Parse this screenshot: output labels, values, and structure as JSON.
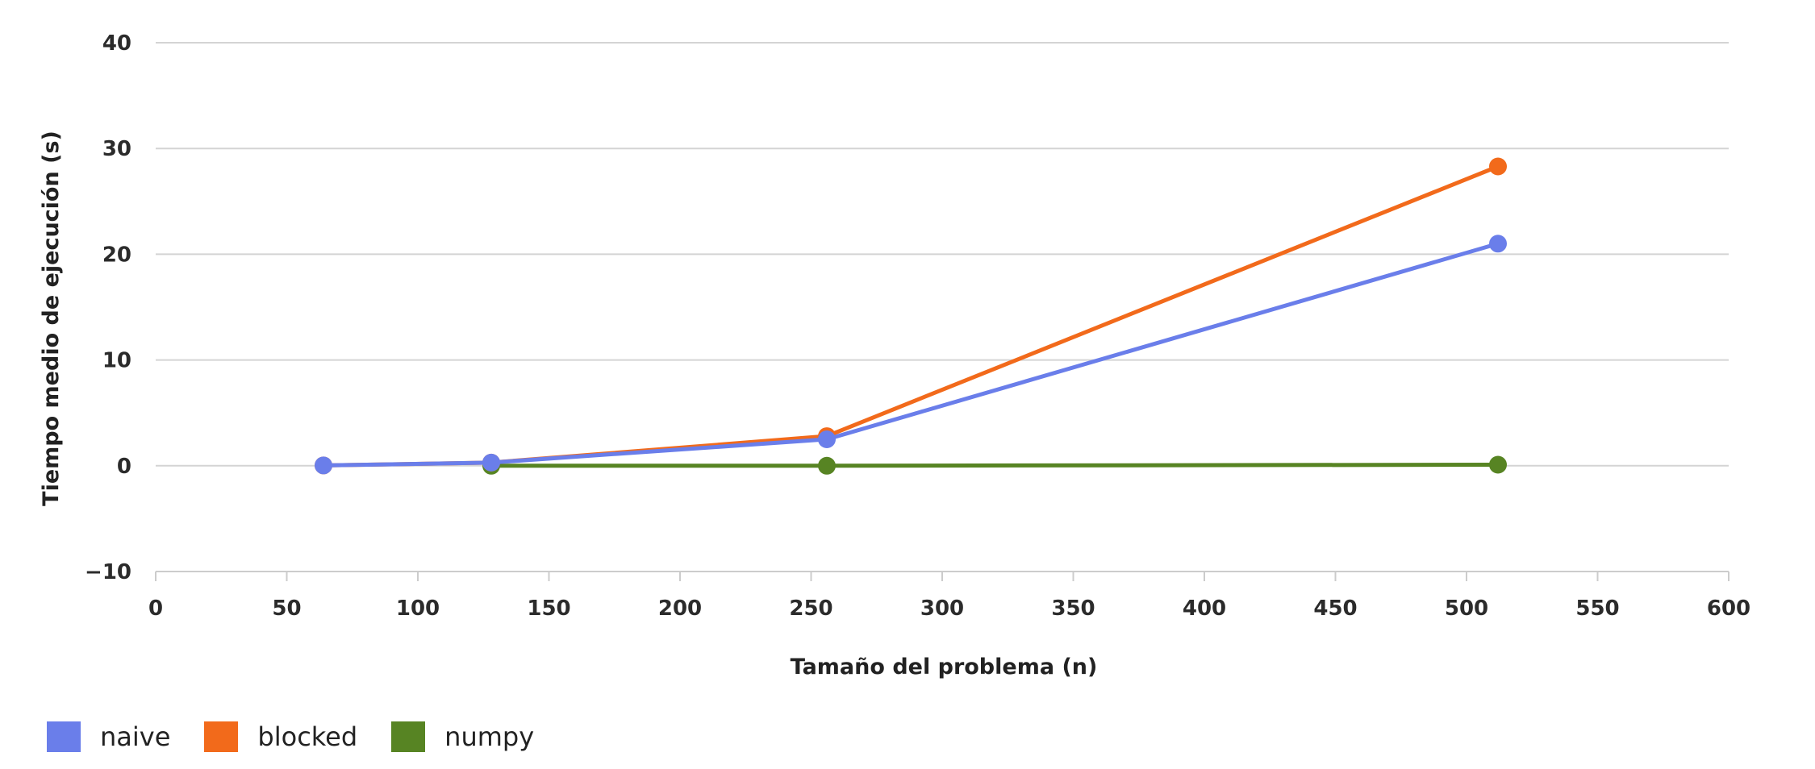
{
  "chart_data": {
    "type": "line",
    "title": "",
    "xlabel": "Tamaño del problema (n)",
    "ylabel": "Tiempo medio de ejecución (s)",
    "xlim": [
      0,
      600
    ],
    "ylim": [
      -10,
      40
    ],
    "xticks": [
      0,
      50,
      100,
      150,
      200,
      250,
      300,
      350,
      400,
      450,
      500,
      550,
      600
    ],
    "yticks": [
      -10,
      0,
      10,
      20,
      30,
      40
    ],
    "xtick_labels": [
      "0",
      "50",
      "100",
      "150",
      "200",
      "250",
      "300",
      "350",
      "400",
      "450",
      "500",
      "550",
      "600"
    ],
    "ytick_labels": [
      "−10",
      "0",
      "10",
      "20",
      "30",
      "40"
    ],
    "grid": "horizontal",
    "legend_position": "bottom-left",
    "series": [
      {
        "name": "naive",
        "color": "#6a7eea",
        "points": [
          [
            64,
            0.03
          ],
          [
            128,
            0.3
          ],
          [
            256,
            2.5
          ],
          [
            512,
            21.0
          ]
        ]
      },
      {
        "name": "blocked",
        "color": "#f26a1b",
        "points": [
          [
            64,
            0.03
          ],
          [
            128,
            0.3
          ],
          [
            256,
            2.8
          ],
          [
            512,
            28.3
          ]
        ]
      },
      {
        "name": "numpy",
        "color": "#578423",
        "points": [
          [
            128,
            0.0
          ],
          [
            256,
            0.0
          ],
          [
            512,
            0.1
          ]
        ]
      }
    ]
  }
}
